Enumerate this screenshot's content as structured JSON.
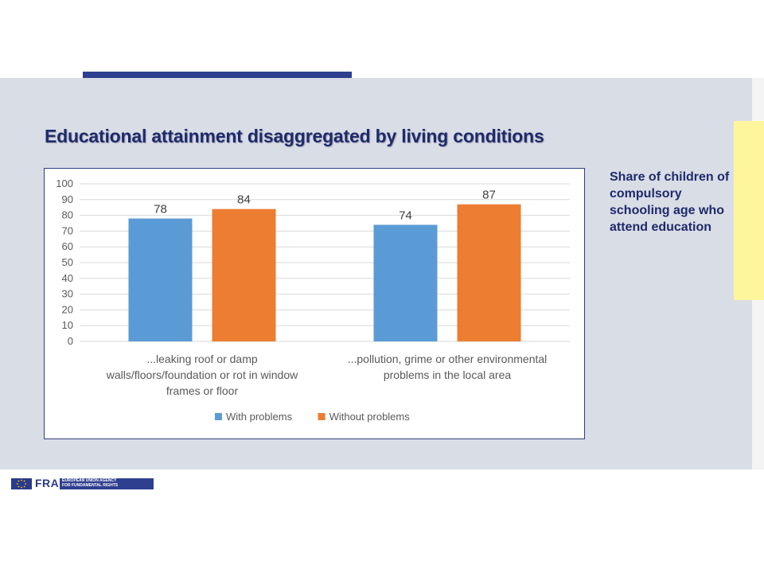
{
  "colors": {
    "accent_bar": "#2f3f8f",
    "title": "#1f2a6b",
    "highlight_tab": "#fff59d",
    "with_problems": "#5b9bd5",
    "without_problems": "#ed7d31"
  },
  "slide": {
    "title": "Educational attainment disaggregated by living conditions",
    "side_note": "Share of children of compulsory schooling age who attend education"
  },
  "footer": {
    "logo_text": "FRA",
    "org_line1": "EUROPEAN UNION AGENCY",
    "org_line2": "FOR FUNDAMENTAL RIGHTS",
    "flag_icon": "eu-flag-icon"
  },
  "chart_data": {
    "type": "bar",
    "title": "",
    "xlabel": "",
    "ylabel": "",
    "ylim": [
      0,
      100
    ],
    "yticks": [
      0,
      10,
      20,
      30,
      40,
      50,
      60,
      70,
      80,
      90,
      100
    ],
    "grid": true,
    "legend_position": "bottom",
    "categories": [
      [
        "...leaking roof or damp",
        "walls/floors/foundation or rot in window",
        "frames or floor"
      ],
      [
        "...pollution, grime or other environmental",
        "problems in the local area"
      ]
    ],
    "series": [
      {
        "name": "With problems",
        "color": "#5b9bd5",
        "values": [
          78,
          74
        ]
      },
      {
        "name": "Without problems",
        "color": "#ed7d31",
        "values": [
          84,
          87
        ]
      }
    ]
  }
}
